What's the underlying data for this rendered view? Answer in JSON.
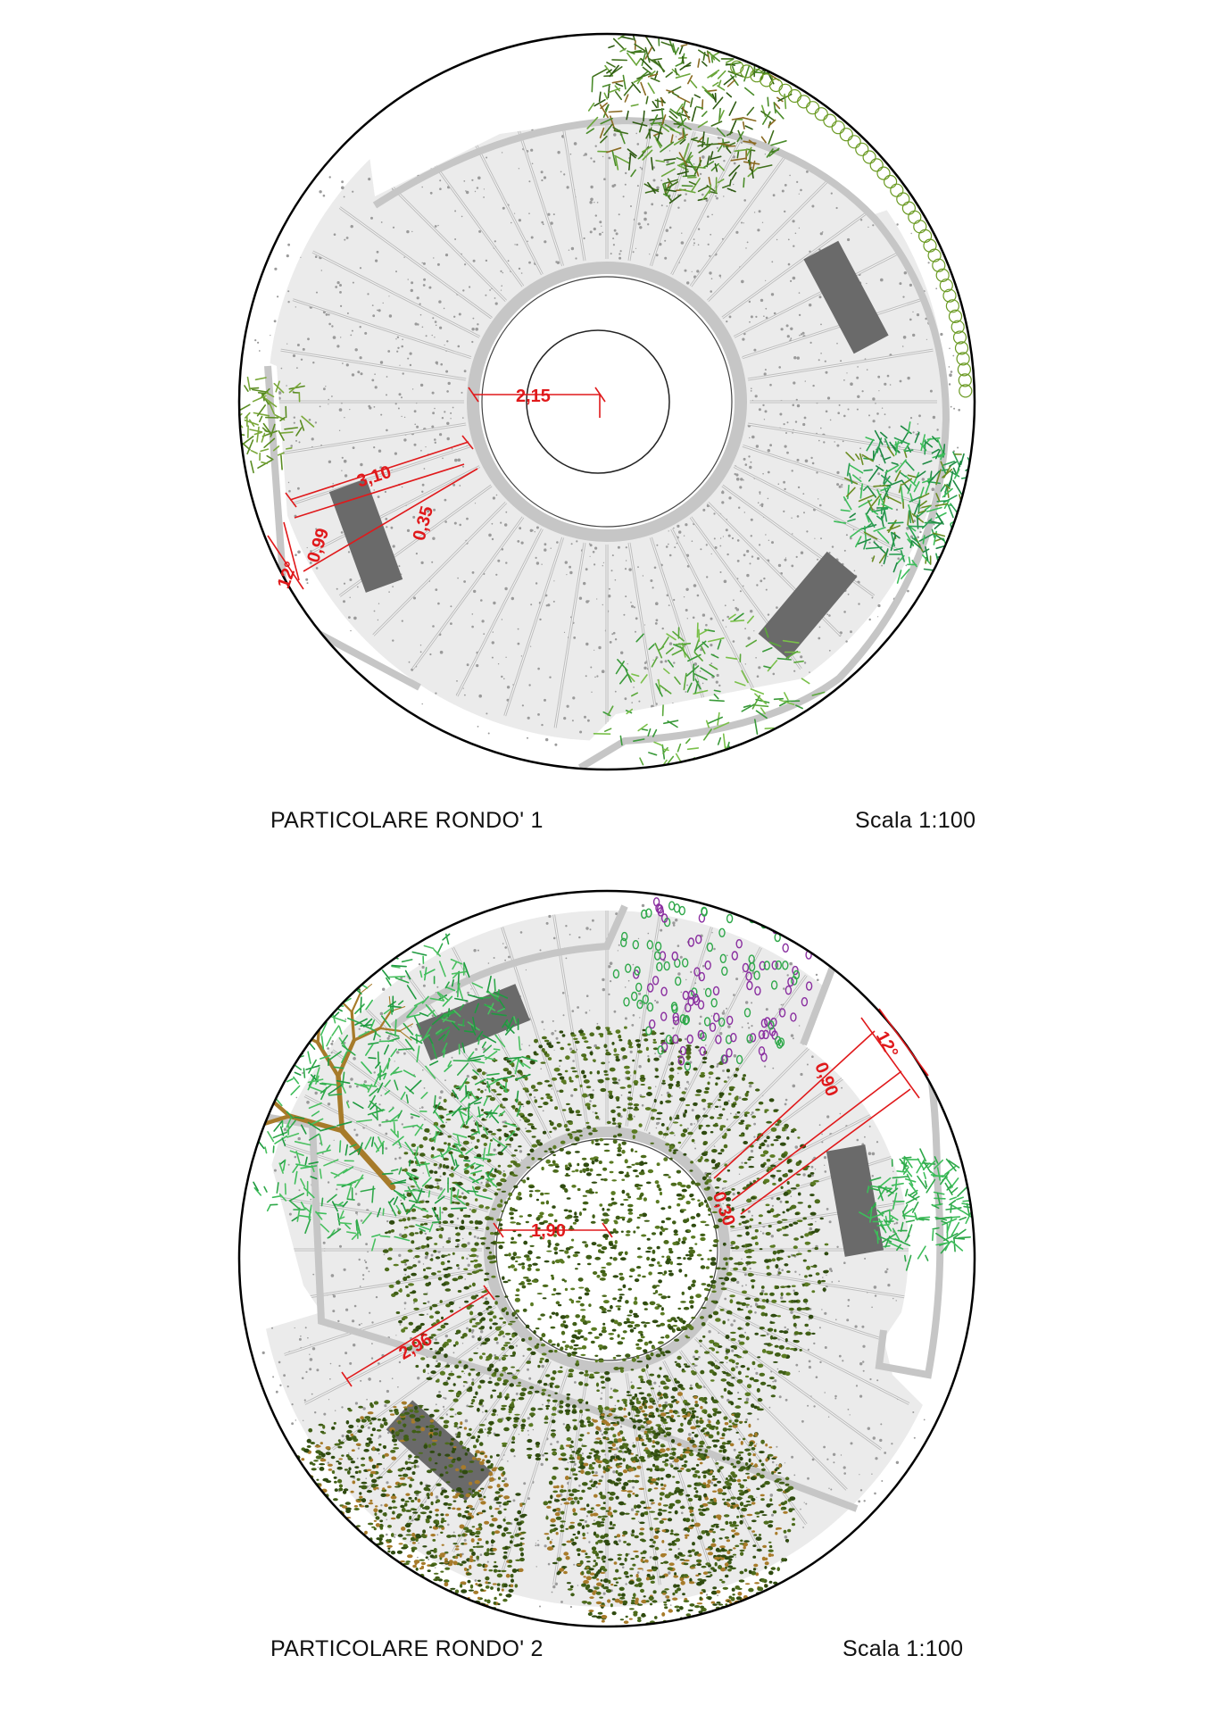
{
  "colors": {
    "dimension": "#e0191b",
    "bench": "#6b6b6b",
    "curb": "#c9c9c9",
    "gravel": "#ececec",
    "foliage_light": "#3aa84a",
    "foliage_dark": "#3f5d16",
    "trunk": "#a77b2a",
    "flower": "#8a2fa0"
  },
  "drawings": [
    {
      "caption": "PARTICOLARE RONDO' 1",
      "scale": "Scala 1:100",
      "dimensions": {
        "inner_radius": "2,15",
        "ring_width": "3,10",
        "curb": "0,35",
        "bench_depth": "0,99",
        "angle": "12°"
      }
    },
    {
      "caption": "PARTICOLARE RONDO' 2",
      "scale": "Scala 1:100",
      "dimensions": {
        "inner_radius": "1,90",
        "ring_width": "2,96",
        "curb": "0,30",
        "bench_depth": "0,90",
        "angle": "12°"
      }
    }
  ]
}
